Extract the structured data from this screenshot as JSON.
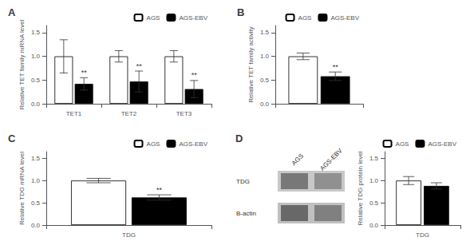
{
  "chart_data": [
    {
      "type": "bar",
      "title": "A",
      "ylabel": "Relative TET family mRNA level",
      "categories": [
        "TET1",
        "TET2",
        "TET3"
      ],
      "series": [
        {
          "name": "AGS",
          "color": "white",
          "values": [
            1.0,
            1.0,
            1.0
          ],
          "errors": [
            0.35,
            0.12,
            0.12
          ]
        },
        {
          "name": "AGS-EBV",
          "color": "black",
          "values": [
            0.42,
            0.47,
            0.31
          ],
          "errors": [
            0.13,
            0.22,
            0.18
          ],
          "annotations": [
            "**",
            "**",
            "**"
          ]
        }
      ],
      "ylim": [
        0,
        1.65
      ],
      "yticks": [
        {
          "value": 0,
          "label": "0.0"
        },
        0.5,
        {
          "value": 1,
          "label": "1.0"
        },
        1.5
      ],
      "grid": false,
      "legend": "upper right"
    },
    {
      "type": "bar",
      "title": "B",
      "ylabel": "Relative TET family activity",
      "categories": [
        null
      ],
      "series": [
        {
          "name": "AGS",
          "color": "white",
          "values": [
            1.0
          ],
          "errors": [
            0.07
          ]
        },
        {
          "name": "AGS-EBV",
          "color": "black",
          "values": [
            0.58
          ],
          "errors": [
            0.09
          ],
          "annotations": [
            "**"
          ]
        }
      ],
      "ylim": [
        0,
        1.65
      ],
      "yticks": [
        {
          "value": 0,
          "label": "0.0"
        },
        0.5,
        {
          "value": 1,
          "label": "1.0"
        },
        1.5
      ],
      "grid": false,
      "legend": "upper right"
    },
    {
      "type": "bar",
      "title": "C",
      "ylabel": "Relative TDG mRNA level",
      "categories": [
        "TDG"
      ],
      "series": [
        {
          "name": "AGS",
          "color": "white",
          "values": [
            1.0
          ],
          "errors": [
            0.05
          ]
        },
        {
          "name": "AGS-EBV",
          "color": "black",
          "values": [
            0.62
          ],
          "errors": [
            0.06
          ],
          "annotations": [
            "**"
          ]
        }
      ],
      "ylim": [
        0,
        1.65
      ],
      "yticks": [
        {
          "value": 0,
          "label": "0.0"
        },
        0.5,
        {
          "value": 1,
          "label": "1.0"
        },
        1.5
      ],
      "grid": false,
      "legend": "upper right"
    },
    {
      "type": "bar",
      "title": "D",
      "ylabel": "Relative TDG protein level",
      "annotations": [
        "AGS",
        "AGS-EBV",
        "TDG",
        "B-actin"
      ],
      "categories": [
        "TDG"
      ],
      "series": [
        {
          "name": "AGS",
          "color": "white",
          "values": [
            1.0
          ],
          "errors": [
            0.09
          ]
        },
        {
          "name": "AGS-EBV",
          "color": "black",
          "values": [
            0.88
          ],
          "errors": [
            0.07
          ],
          "annotations": [
            null
          ]
        }
      ],
      "ylim": [
        0,
        1.65
      ],
      "yticks": [
        {
          "value": 0,
          "label": "0.0"
        },
        0.5,
        {
          "value": 1,
          "label": "1.0"
        },
        1.5
      ],
      "grid": false,
      "legend": "upper right"
    }
  ]
}
